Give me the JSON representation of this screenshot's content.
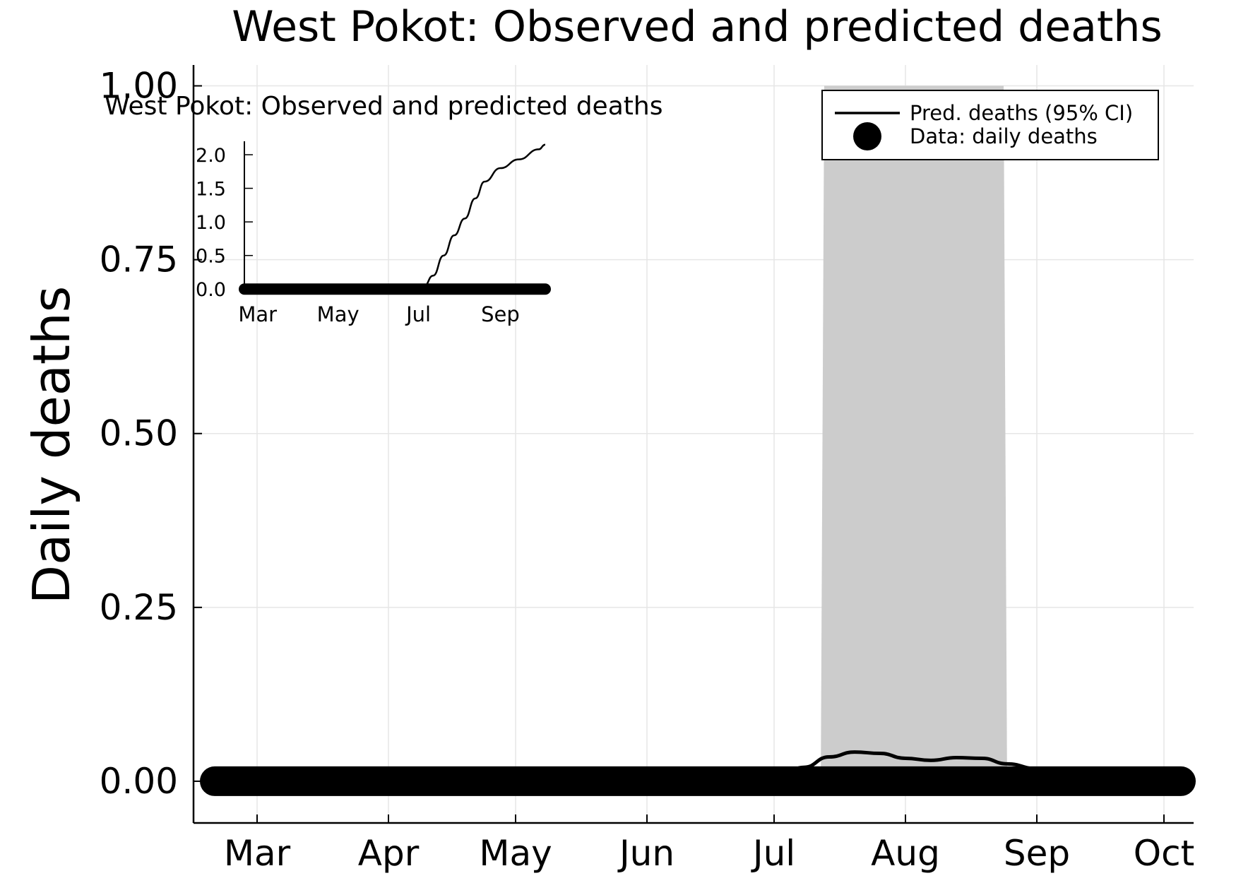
{
  "chart_data": [
    {
      "type": "line",
      "title": "West Pokot: Observed and predicted deaths",
      "xlabel": "",
      "ylabel": "Daily deaths",
      "x_ticks": [
        "Mar",
        "Apr",
        "May",
        "Jun",
        "Jul",
        "Aug",
        "Sep",
        "Oct"
      ],
      "x_range": [
        "2020-02-15",
        "2020-10-08"
      ],
      "ylim": [
        -0.06,
        1.03
      ],
      "y_ticks": [
        "0.00",
        "0.25",
        "0.50",
        "0.75",
        "1.00"
      ],
      "grid": true,
      "legend_position": "top-right",
      "series": [
        {
          "name": "Pred. deaths (95% CI)",
          "kind": "line",
          "x": [
            "2020-02-20",
            "2020-07-01",
            "2020-07-08",
            "2020-07-14",
            "2020-07-20",
            "2020-07-26",
            "2020-08-01",
            "2020-08-07",
            "2020-08-13",
            "2020-08-19",
            "2020-08-25",
            "2020-09-01",
            "2020-10-05"
          ],
          "y": [
            0.0,
            0.0,
            0.02,
            0.035,
            0.042,
            0.04,
            0.033,
            0.03,
            0.034,
            0.033,
            0.025,
            0.018,
            0.0
          ],
          "ci_band": {
            "x": [
              "2020-07-12",
              "2020-08-25"
            ],
            "lower": [
              -0.02,
              -0.02
            ],
            "upper": [
              1.0,
              1.0
            ]
          }
        },
        {
          "name": "Data: daily deaths",
          "kind": "scatter",
          "x_start": "2020-02-20",
          "x_end": "2020-10-05",
          "y": 0
        }
      ]
    },
    {
      "type": "line",
      "title": "West Pokot: Observed and predicted deaths",
      "x_ticks": [
        "Mar",
        "May",
        "Jul",
        "Sep"
      ],
      "y_ticks": [
        "0.0",
        "0.5",
        "1.0",
        "1.5",
        "2.0"
      ],
      "ylim": [
        -0.05,
        2.2
      ],
      "series": [
        {
          "name": "Pred. deaths",
          "kind": "line",
          "x": [
            "2020-02-20",
            "2020-06-28",
            "2020-07-05",
            "2020-07-12",
            "2020-07-20",
            "2020-07-28",
            "2020-08-05",
            "2020-08-13",
            "2020-08-20",
            "2020-09-01",
            "2020-09-15",
            "2020-09-30",
            "2020-10-05"
          ],
          "y": [
            0.0,
            0.0,
            0.04,
            0.2,
            0.5,
            0.8,
            1.05,
            1.35,
            1.6,
            1.8,
            1.93,
            2.08,
            2.15
          ]
        },
        {
          "name": "Data: daily deaths",
          "kind": "scatter",
          "x_start": "2020-02-20",
          "x_end": "2020-10-05",
          "y": 0
        }
      ]
    }
  ]
}
